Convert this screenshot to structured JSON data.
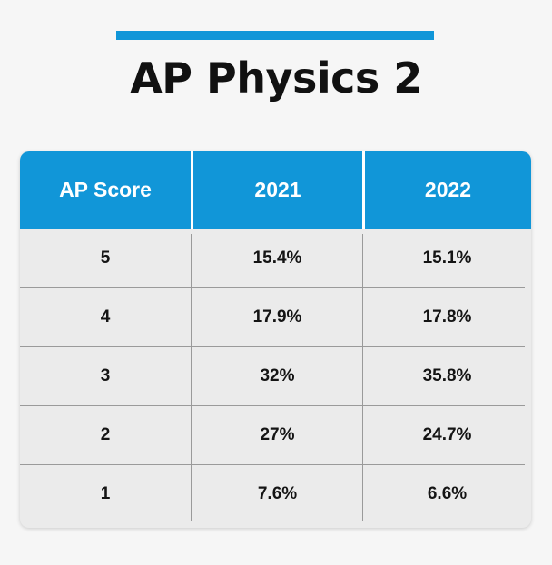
{
  "title": "AP Physics 2",
  "colors": {
    "accent": "#1196d8",
    "background": "#f6f6f6",
    "table_body": "#ebebeb",
    "header_text": "#ffffff",
    "body_text": "#141414"
  },
  "table": {
    "headers": [
      "AP Score",
      "2021",
      "2022"
    ],
    "rows": [
      [
        "5",
        "15.4%",
        "15.1%"
      ],
      [
        "4",
        "17.9%",
        "17.8%"
      ],
      [
        "3",
        "32%",
        "35.8%"
      ],
      [
        "2",
        "27%",
        "24.7%"
      ],
      [
        "1",
        "7.6%",
        "6.6%"
      ]
    ]
  }
}
